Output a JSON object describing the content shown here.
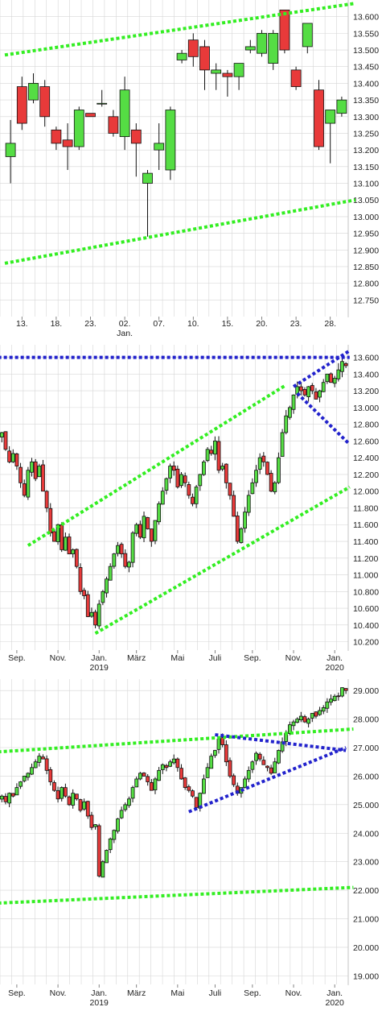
{
  "colors": {
    "up": "#55dd44",
    "down": "#e83a3a",
    "wick": "#111111",
    "grid": "#d6d6d6",
    "channel": "#33ee22",
    "pattern": "#2222cc"
  },
  "chart_data": [
    {
      "type": "candlestick",
      "title": "",
      "grid": true,
      "ylim": [
        12.7,
        13.65
      ],
      "y_ticks": [
        "13.600",
        "13.550",
        "13.500",
        "13.450",
        "13.400",
        "13.350",
        "13.300",
        "13.250",
        "13.200",
        "13.150",
        "13.100",
        "13.050",
        "13.000",
        "12.950",
        "12.900",
        "12.850",
        "12.800",
        "12.750"
      ],
      "x_ticks": [
        {
          "label": "13.",
          "index": 1
        },
        {
          "label": "18.",
          "index": 4
        },
        {
          "label": "23.",
          "index": 7
        },
        {
          "label": "02.",
          "sublabel": "Jan.",
          "index": 10
        },
        {
          "label": "07.",
          "index": 13
        },
        {
          "label": "10.",
          "index": 16
        },
        {
          "label": "15.",
          "index": 19
        },
        {
          "label": "20.",
          "index": 22
        },
        {
          "label": "23.",
          "index": 25
        },
        {
          "label": "28.",
          "index": 28
        }
      ],
      "candles": [
        {
          "o": 13.18,
          "h": 13.29,
          "l": 13.1,
          "c": 13.22
        },
        {
          "o": 13.39,
          "h": 13.42,
          "l": 13.26,
          "c": 13.28
        },
        {
          "o": 13.35,
          "h": 13.43,
          "l": 13.34,
          "c": 13.4
        },
        {
          "o": 13.39,
          "h": 13.41,
          "l": 13.27,
          "c": 13.3
        },
        {
          "o": 13.26,
          "h": 13.27,
          "l": 13.2,
          "c": 13.22
        },
        {
          "o": 13.23,
          "h": 13.28,
          "l": 13.14,
          "c": 13.21
        },
        {
          "o": 13.21,
          "h": 13.33,
          "l": 13.2,
          "c": 13.32
        },
        {
          "o": 13.31,
          "h": 13.31,
          "l": 13.3,
          "c": 13.3
        },
        {
          "o": 13.34,
          "h": 13.38,
          "l": 13.33,
          "c": 13.34
        },
        {
          "o": 13.3,
          "h": 13.32,
          "l": 13.24,
          "c": 13.25
        },
        {
          "o": 13.24,
          "h": 13.42,
          "l": 13.2,
          "c": 13.38
        },
        {
          "o": 13.26,
          "h": 13.28,
          "l": 13.12,
          "c": 13.22
        },
        {
          "o": 13.1,
          "h": 13.14,
          "l": 12.94,
          "c": 13.13
        },
        {
          "o": 13.2,
          "h": 13.28,
          "l": 13.14,
          "c": 13.22
        },
        {
          "o": 13.14,
          "h": 13.33,
          "l": 13.11,
          "c": 13.32
        },
        {
          "o": 13.47,
          "h": 13.5,
          "l": 13.46,
          "c": 13.49
        },
        {
          "o": 13.53,
          "h": 13.55,
          "l": 13.45,
          "c": 13.48
        },
        {
          "o": 13.51,
          "h": 13.53,
          "l": 13.38,
          "c": 13.44
        },
        {
          "o": 13.43,
          "h": 13.46,
          "l": 13.38,
          "c": 13.44
        },
        {
          "o": 13.43,
          "h": 13.44,
          "l": 13.36,
          "c": 13.42
        },
        {
          "o": 13.42,
          "h": 13.46,
          "l": 13.38,
          "c": 13.46
        },
        {
          "o": 13.5,
          "h": 13.53,
          "l": 13.49,
          "c": 13.51
        },
        {
          "o": 13.49,
          "h": 13.56,
          "l": 13.48,
          "c": 13.55
        },
        {
          "o": 13.46,
          "h": 13.56,
          "l": 13.44,
          "c": 13.55
        },
        {
          "o": 13.62,
          "h": 13.62,
          "l": 13.49,
          "c": 13.5
        },
        {
          "o": 13.44,
          "h": 13.45,
          "l": 13.38,
          "c": 13.39
        },
        {
          "o": 13.51,
          "h": 13.58,
          "l": 13.49,
          "c": 13.58
        },
        {
          "o": 13.38,
          "h": 13.41,
          "l": 13.2,
          "c": 13.21
        },
        {
          "o": 13.28,
          "h": 13.32,
          "l": 13.16,
          "c": 13.32
        },
        {
          "o": 13.31,
          "h": 13.36,
          "l": 13.3,
          "c": 13.35
        }
      ],
      "trend_lines": [
        {
          "style": "channel",
          "from": [
            -0.5,
            13.485
          ],
          "to": [
            30.2,
            13.64
          ]
        },
        {
          "style": "channel",
          "from": [
            -0.5,
            12.86
          ],
          "to": [
            30.2,
            13.05
          ]
        }
      ]
    },
    {
      "type": "candlestick",
      "title": "",
      "grid": true,
      "ylim": [
        10.1,
        13.75
      ],
      "y_ticks": [
        "13.600",
        "13.400",
        "13.200",
        "13.000",
        "12.800",
        "12.600",
        "12.400",
        "12.200",
        "12.000",
        "11.800",
        "11.600",
        "11.400",
        "11.200",
        "11.000",
        "10.800",
        "10.600",
        "10.400",
        "10.200"
      ],
      "x_ticks": [
        {
          "label": "Sep.",
          "index": 4
        },
        {
          "label": "Nov.",
          "index": 15
        },
        {
          "label": "Jan.",
          "sublabel": "2019",
          "index": 26
        },
        {
          "label": "März",
          "index": 36
        },
        {
          "label": "Mai",
          "index": 47
        },
        {
          "label": "Juli",
          "index": 57
        },
        {
          "label": "Sep.",
          "index": 67
        },
        {
          "label": "Nov.",
          "index": 78
        },
        {
          "label": "Jan.",
          "sublabel": "2020",
          "index": 89
        }
      ],
      "closes": [
        12.7,
        12.5,
        12.35,
        12.45,
        12.3,
        12.1,
        11.95,
        12.25,
        12.35,
        12.15,
        12.3,
        12.0,
        11.8,
        11.5,
        11.4,
        11.6,
        11.3,
        11.45,
        11.25,
        11.3,
        11.1,
        10.8,
        10.75,
        10.5,
        10.55,
        10.4,
        10.65,
        10.8,
        10.95,
        11.1,
        11.25,
        11.35,
        11.25,
        11.1,
        11.15,
        11.5,
        11.6,
        11.45,
        11.7,
        11.55,
        11.4,
        11.65,
        11.85,
        12.0,
        12.15,
        12.3,
        12.25,
        12.05,
        12.2,
        12.1,
        11.95,
        11.85,
        12.05,
        12.2,
        12.35,
        12.5,
        12.45,
        12.6,
        12.25,
        12.3,
        12.1,
        11.95,
        11.7,
        11.4,
        11.55,
        11.75,
        11.95,
        12.1,
        12.25,
        12.4,
        12.35,
        12.2,
        12.0,
        12.1,
        12.4,
        12.7,
        12.9,
        13.0,
        13.15,
        13.25,
        13.2,
        13.15,
        13.25,
        13.2,
        13.1,
        13.2,
        13.3,
        13.4,
        13.3,
        13.35,
        13.45,
        13.55,
        13.5
      ],
      "trend_lines": [
        {
          "style": "channel",
          "from": [
            7,
            11.35
          ],
          "to": [
            76,
            13.27
          ]
        },
        {
          "style": "channel",
          "from": [
            25,
            10.3
          ],
          "to": [
            93,
            12.05
          ]
        },
        {
          "style": "pattern",
          "from": [
            -1,
            13.6
          ],
          "to": [
            93,
            13.6
          ]
        },
        {
          "style": "pattern",
          "from": [
            78,
            13.25
          ],
          "to": [
            93,
            13.68
          ]
        },
        {
          "style": "pattern",
          "from": [
            79,
            13.17
          ],
          "to": [
            93,
            12.56
          ]
        }
      ]
    },
    {
      "type": "candlestick",
      "title": "",
      "grid": true,
      "ylim": [
        18.7,
        29.4
      ],
      "y_ticks": [
        "29.000",
        "28.000",
        "27.000",
        "26.000",
        "25.000",
        "24.000",
        "23.000",
        "22.000",
        "21.000",
        "20.000",
        "19.000"
      ],
      "x_ticks": [
        {
          "label": "Sep.",
          "index": 4
        },
        {
          "label": "Nov.",
          "index": 15
        },
        {
          "label": "Jan.",
          "sublabel": "2019",
          "index": 26
        },
        {
          "label": "März",
          "index": 36
        },
        {
          "label": "Mai",
          "index": 47
        },
        {
          "label": "Juli",
          "index": 57
        },
        {
          "label": "Sep.",
          "index": 67
        },
        {
          "label": "Nov.",
          "index": 78
        },
        {
          "label": "Jan.",
          "sublabel": "2020",
          "index": 89
        }
      ],
      "closes": [
        25.3,
        25.1,
        25.4,
        25.3,
        25.6,
        25.8,
        26.0,
        26.1,
        26.3,
        26.5,
        26.7,
        26.6,
        26.2,
        25.8,
        25.5,
        25.2,
        25.6,
        25.3,
        25.0,
        25.4,
        25.2,
        24.8,
        25.1,
        24.6,
        24.2,
        24.3,
        22.5,
        23.0,
        23.4,
        23.8,
        24.1,
        24.5,
        24.8,
        25.0,
        25.2,
        25.6,
        25.9,
        26.1,
        26.0,
        25.8,
        25.5,
        25.9,
        26.2,
        26.4,
        26.3,
        26.5,
        26.6,
        26.3,
        25.9,
        25.6,
        25.5,
        25.3,
        24.9,
        25.4,
        25.9,
        26.3,
        26.7,
        26.9,
        27.3,
        27.1,
        26.5,
        26.0,
        25.7,
        25.4,
        25.6,
        25.9,
        26.2,
        26.5,
        26.8,
        26.6,
        26.4,
        26.3,
        26.1,
        26.5,
        26.9,
        27.2,
        27.5,
        27.8,
        27.9,
        28.0,
        28.1,
        27.9,
        28.0,
        28.2,
        28.1,
        28.3,
        28.4,
        28.6,
        28.7,
        28.8,
        28.8,
        29.1,
        29.0
      ],
      "trend_lines": [
        {
          "style": "channel",
          "from": [
            -1,
            26.85
          ],
          "to": [
            94,
            27.65
          ]
        },
        {
          "style": "channel",
          "from": [
            -1,
            21.55
          ],
          "to": [
            94,
            22.1
          ]
        },
        {
          "style": "pattern",
          "from": [
            57,
            27.45
          ],
          "to": [
            92,
            26.9
          ]
        },
        {
          "style": "pattern",
          "from": [
            50,
            24.75
          ],
          "to": [
            92,
            27.0
          ]
        }
      ]
    }
  ]
}
